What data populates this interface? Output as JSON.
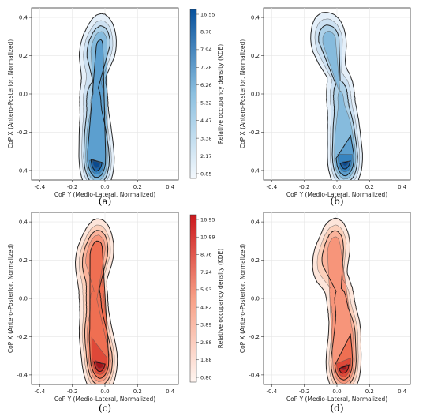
{
  "chart_data": [
    {
      "type": "kde-contour",
      "caption": "(a)",
      "palette": "blues",
      "xlabel": "CoP Y (Medio-Lateral, Normalized)",
      "ylabel": "CoP X (Antero-Posterior, Normalized)",
      "xlim": [
        -0.45,
        0.45
      ],
      "ylim": [
        -0.45,
        0.45
      ],
      "xticks": [
        "-0.4",
        "-0.2",
        "0.0",
        "0.2",
        "0.4"
      ],
      "yticks": [
        "0.4",
        "0.2",
        "0.0",
        "-0.2",
        "-0.4"
      ],
      "grid": true,
      "density_peaks": [
        {
          "y": -0.05,
          "x": -0.35,
          "weight": 1.0
        },
        {
          "y": -0.06,
          "x": -0.2,
          "weight": 0.55
        },
        {
          "y": -0.07,
          "x": -0.02,
          "weight": 0.35
        },
        {
          "y": -0.02,
          "x": 0.27,
          "weight": 0.45
        },
        {
          "y": -0.08,
          "x": 0.2,
          "weight": 0.25
        }
      ],
      "colorbar": {
        "label": "Relative occupancy density (KDE)",
        "ticks": [
          "16.55",
          "8.70",
          "7.94",
          "7.28",
          "6.26",
          "5.32",
          "4.47",
          "3.38",
          "2.17",
          "0.85"
        ]
      }
    },
    {
      "type": "kde-contour",
      "caption": "(b)",
      "palette": "blues",
      "xlabel": "CoP Y (Medio-Lateral, Normalized)",
      "ylabel": "CoP X (Antero-Posterior, Normalized)",
      "xlim": [
        -0.45,
        0.45
      ],
      "ylim": [
        -0.45,
        0.45
      ],
      "xticks": [
        "-0.4",
        "-0.2",
        "0.0",
        "0.2",
        "0.4"
      ],
      "yticks": [
        "0.4",
        "0.2",
        "0.0",
        "-0.2",
        "-0.4"
      ],
      "grid": true,
      "density_peaks": [
        {
          "y": 0.05,
          "x": -0.34,
          "weight": 1.0
        },
        {
          "y": 0.04,
          "x": -0.18,
          "weight": 0.55
        },
        {
          "y": 0.02,
          "x": 0.0,
          "weight": 0.35
        },
        {
          "y": -0.03,
          "x": 0.26,
          "weight": 0.4
        },
        {
          "y": -0.09,
          "x": 0.3,
          "weight": 0.2
        }
      ]
    },
    {
      "type": "kde-contour",
      "caption": "(c)",
      "palette": "reds",
      "xlabel": "CoP Y (Medio-Lateral, Normalized)",
      "ylabel": "CoP X (Antero-Posterior, Normalized)",
      "xlim": [
        -0.45,
        0.45
      ],
      "ylim": [
        -0.45,
        0.45
      ],
      "xticks": [
        "-0.4",
        "-0.2",
        "0.0",
        "0.2",
        "0.4"
      ],
      "yticks": [
        "0.4",
        "0.2",
        "0.0",
        "-0.2",
        "-0.4"
      ],
      "grid": true,
      "density_peaks": [
        {
          "y": -0.03,
          "x": -0.33,
          "weight": 1.0
        },
        {
          "y": -0.06,
          "x": -0.18,
          "weight": 0.6
        },
        {
          "y": -0.07,
          "x": 0.0,
          "weight": 0.35
        },
        {
          "y": -0.04,
          "x": 0.26,
          "weight": 0.55
        },
        {
          "y": -0.1,
          "x": 0.18,
          "weight": 0.3
        }
      ],
      "colorbar": {
        "label": "Relative occupancy density (KDE)",
        "ticks": [
          "16.95",
          "10.89",
          "8.76",
          "7.24",
          "5.93",
          "4.82",
          "3.89",
          "2.88",
          "1.88",
          "0.80"
        ]
      }
    },
    {
      "type": "kde-contour",
      "caption": "(d)",
      "palette": "reds",
      "xlabel": "CoP Y (Medio-Lateral, Normalized)",
      "ylabel": "CoP X (Antero-Posterior, Normalized)",
      "xlim": [
        -0.45,
        0.45
      ],
      "ylim": [
        -0.45,
        0.45
      ],
      "xticks": [
        "-0.4",
        "-0.2",
        "0.0",
        "0.2",
        "0.4"
      ],
      "yticks": [
        "0.4",
        "0.2",
        "0.0",
        "-0.2",
        "-0.4"
      ],
      "grid": true,
      "density_peaks": [
        {
          "y": 0.04,
          "x": -0.34,
          "weight": 1.0
        },
        {
          "y": 0.05,
          "x": -0.18,
          "weight": 0.55
        },
        {
          "y": 0.02,
          "x": 0.0,
          "weight": 0.3
        },
        {
          "y": -0.01,
          "x": 0.27,
          "weight": 0.45
        },
        {
          "y": -0.08,
          "x": 0.18,
          "weight": 0.2
        }
      ]
    }
  ]
}
